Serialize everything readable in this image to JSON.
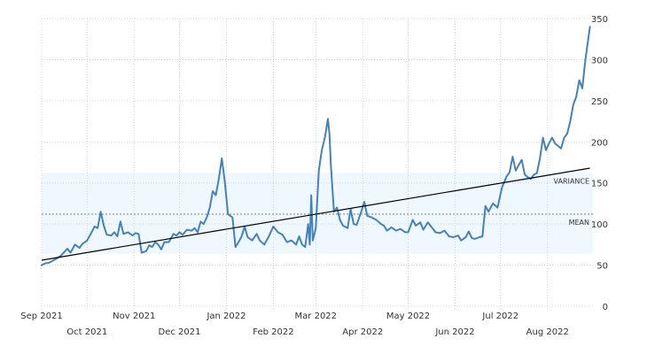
{
  "chart_data": {
    "type": "line",
    "title": "",
    "xlabel": "",
    "ylabel": "",
    "ylim": [
      0,
      350
    ],
    "yticks": [
      0,
      50,
      100,
      150,
      200,
      250,
      300,
      350
    ],
    "xlim": [
      "2021-09-01",
      "2022-08-31"
    ],
    "xticks_top_row": [
      {
        "label": "Sep 2021",
        "date": "2021-09-01"
      },
      {
        "label": "Nov 2021",
        "date": "2021-11-01"
      },
      {
        "label": "Jan 2022",
        "date": "2022-01-01"
      },
      {
        "label": "Mar 2022",
        "date": "2022-03-01"
      },
      {
        "label": "May 2022",
        "date": "2022-05-01"
      },
      {
        "label": "Jul 2022",
        "date": "2022-07-01"
      }
    ],
    "xticks_bottom_row": [
      {
        "label": "Oct 2021",
        "date": "2021-10-01"
      },
      {
        "label": "Dec 2021",
        "date": "2021-12-01"
      },
      {
        "label": "Feb 2022",
        "date": "2022-02-01"
      },
      {
        "label": "Apr 2022",
        "date": "2022-04-01"
      },
      {
        "label": "Jun 2022",
        "date": "2022-06-01"
      },
      {
        "label": "Aug 2022",
        "date": "2022-08-01"
      }
    ],
    "grid": true,
    "y_axis_side": "right",
    "colors": {
      "series": "#4682b4",
      "band": "#f0f8ff",
      "trend": "#000000",
      "mean": "#555555",
      "grid": "#cccccc"
    },
    "variance_band": {
      "label": "VARIANCE",
      "low": 64,
      "high": 162
    },
    "mean_line": {
      "label": "MEAN",
      "value": 112
    },
    "trend_line": {
      "start": {
        "x": "2021-09-01",
        "y": 56
      },
      "end": {
        "x": "2022-08-29",
        "y": 168
      }
    },
    "series": [
      {
        "points": [
          [
            "2021-09-01",
            50
          ],
          [
            "2021-09-03",
            52
          ],
          [
            "2021-09-06",
            53
          ],
          [
            "2021-09-08",
            55
          ],
          [
            "2021-09-11",
            58
          ],
          [
            "2021-09-14",
            62
          ],
          [
            "2021-09-16",
            66
          ],
          [
            "2021-09-18",
            70
          ],
          [
            "2021-09-20",
            65
          ],
          [
            "2021-09-23",
            75
          ],
          [
            "2021-09-26",
            71
          ],
          [
            "2021-09-28",
            76
          ],
          [
            "2021-10-01",
            80
          ],
          [
            "2021-10-04",
            90
          ],
          [
            "2021-10-06",
            97
          ],
          [
            "2021-10-08",
            95
          ],
          [
            "2021-10-10",
            115
          ],
          [
            "2021-10-12",
            98
          ],
          [
            "2021-10-14",
            87
          ],
          [
            "2021-10-17",
            86
          ],
          [
            "2021-10-19",
            90
          ],
          [
            "2021-10-21",
            85
          ],
          [
            "2021-10-23",
            103
          ],
          [
            "2021-10-25",
            88
          ],
          [
            "2021-10-28",
            90
          ],
          [
            "2021-10-31",
            86
          ],
          [
            "2021-11-02",
            89
          ],
          [
            "2021-11-04",
            88
          ],
          [
            "2021-11-06",
            65
          ],
          [
            "2021-11-09",
            67
          ],
          [
            "2021-11-11",
            74
          ],
          [
            "2021-11-13",
            72
          ],
          [
            "2021-11-15",
            78
          ],
          [
            "2021-11-17",
            75
          ],
          [
            "2021-11-19",
            69
          ],
          [
            "2021-11-21",
            78
          ],
          [
            "2021-11-24",
            78
          ],
          [
            "2021-11-27",
            88
          ],
          [
            "2021-11-29",
            86
          ],
          [
            "2021-12-01",
            90
          ],
          [
            "2021-12-03",
            87
          ],
          [
            "2021-12-06",
            93
          ],
          [
            "2021-12-09",
            92
          ],
          [
            "2021-12-11",
            95
          ],
          [
            "2021-12-13",
            90
          ],
          [
            "2021-12-15",
            103
          ],
          [
            "2021-12-17",
            100
          ],
          [
            "2021-12-19",
            108
          ],
          [
            "2021-12-21",
            120
          ],
          [
            "2021-12-23",
            140
          ],
          [
            "2021-12-25",
            135
          ],
          [
            "2021-12-27",
            155
          ],
          [
            "2021-12-29",
            180
          ],
          [
            "2021-12-31",
            150
          ],
          [
            "2022-01-02",
            112
          ],
          [
            "2022-01-05",
            108
          ],
          [
            "2022-01-07",
            72
          ],
          [
            "2022-01-09",
            78
          ],
          [
            "2022-01-11",
            85
          ],
          [
            "2022-01-13",
            97
          ],
          [
            "2022-01-15",
            84
          ],
          [
            "2022-01-18",
            80
          ],
          [
            "2022-01-21",
            88
          ],
          [
            "2022-01-23",
            80
          ],
          [
            "2022-01-26",
            75
          ],
          [
            "2022-01-29",
            85
          ],
          [
            "2022-02-01",
            97
          ],
          [
            "2022-02-04",
            90
          ],
          [
            "2022-02-07",
            87
          ],
          [
            "2022-02-10",
            78
          ],
          [
            "2022-02-13",
            80
          ],
          [
            "2022-02-16",
            75
          ],
          [
            "2022-02-18",
            85
          ],
          [
            "2022-02-20",
            75
          ],
          [
            "2022-02-22",
            72
          ],
          [
            "2022-02-24",
            100
          ],
          [
            "2022-02-25",
            75
          ],
          [
            "2022-02-26",
            135
          ],
          [
            "2022-02-27",
            80
          ],
          [
            "2022-03-01",
            95
          ],
          [
            "2022-03-03",
            165
          ],
          [
            "2022-03-05",
            190
          ],
          [
            "2022-03-07",
            205
          ],
          [
            "2022-03-09",
            228
          ],
          [
            "2022-03-10",
            210
          ],
          [
            "2022-03-11",
            170
          ],
          [
            "2022-03-13",
            115
          ],
          [
            "2022-03-15",
            120
          ],
          [
            "2022-03-17",
            105
          ],
          [
            "2022-03-19",
            98
          ],
          [
            "2022-03-22",
            95
          ],
          [
            "2022-03-24",
            118
          ],
          [
            "2022-03-26",
            100
          ],
          [
            "2022-03-28",
            99
          ],
          [
            "2022-03-31",
            115
          ],
          [
            "2022-04-02",
            127
          ],
          [
            "2022-04-04",
            110
          ],
          [
            "2022-04-07",
            108
          ],
          [
            "2022-04-10",
            105
          ],
          [
            "2022-04-13",
            100
          ],
          [
            "2022-04-15",
            98
          ],
          [
            "2022-04-17",
            92
          ],
          [
            "2022-04-20",
            96
          ],
          [
            "2022-04-23",
            92
          ],
          [
            "2022-04-26",
            94
          ],
          [
            "2022-04-29",
            90
          ],
          [
            "2022-05-01",
            90
          ],
          [
            "2022-05-04",
            105
          ],
          [
            "2022-05-06",
            98
          ],
          [
            "2022-05-09",
            102
          ],
          [
            "2022-05-11",
            93
          ],
          [
            "2022-05-14",
            102
          ],
          [
            "2022-05-17",
            95
          ],
          [
            "2022-05-19",
            90
          ],
          [
            "2022-05-22",
            89
          ],
          [
            "2022-05-25",
            92
          ],
          [
            "2022-05-28",
            85
          ],
          [
            "2022-05-31",
            84
          ],
          [
            "2022-06-03",
            86
          ],
          [
            "2022-06-05",
            80
          ],
          [
            "2022-06-08",
            84
          ],
          [
            "2022-06-10",
            91
          ],
          [
            "2022-06-12",
            83
          ],
          [
            "2022-06-14",
            82
          ],
          [
            "2022-06-17",
            84
          ],
          [
            "2022-06-19",
            85
          ],
          [
            "2022-06-21",
            122
          ],
          [
            "2022-06-23",
            115
          ],
          [
            "2022-06-26",
            125
          ],
          [
            "2022-06-29",
            120
          ],
          [
            "2022-07-02",
            145
          ],
          [
            "2022-07-05",
            158
          ],
          [
            "2022-07-07",
            163
          ],
          [
            "2022-07-09",
            182
          ],
          [
            "2022-07-11",
            165
          ],
          [
            "2022-07-13",
            172
          ],
          [
            "2022-07-15",
            178
          ],
          [
            "2022-07-17",
            160
          ],
          [
            "2022-07-19",
            157
          ],
          [
            "2022-07-21",
            155
          ],
          [
            "2022-07-23",
            160
          ],
          [
            "2022-07-25",
            162
          ],
          [
            "2022-07-27",
            180
          ],
          [
            "2022-07-29",
            205
          ],
          [
            "2022-07-31",
            190
          ],
          [
            "2022-08-02",
            198
          ],
          [
            "2022-08-04",
            205
          ],
          [
            "2022-08-06",
            198
          ],
          [
            "2022-08-08",
            195
          ],
          [
            "2022-08-10",
            192
          ],
          [
            "2022-08-12",
            205
          ],
          [
            "2022-08-14",
            210
          ],
          [
            "2022-08-16",
            225
          ],
          [
            "2022-08-18",
            245
          ],
          [
            "2022-08-20",
            255
          ],
          [
            "2022-08-22",
            275
          ],
          [
            "2022-08-24",
            265
          ],
          [
            "2022-08-26",
            300
          ],
          [
            "2022-08-29",
            340
          ]
        ]
      }
    ]
  }
}
